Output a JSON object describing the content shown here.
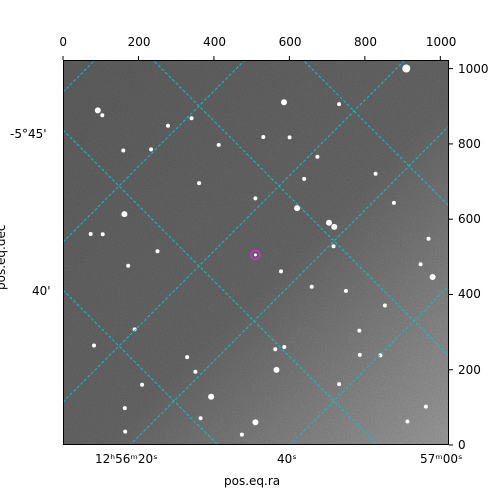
{
  "figure": {
    "x_axis_label": "pos.eq.ra",
    "y_axis_label": "pos.eq.dec",
    "background_color": "#ffffff",
    "image_colormap": "gray",
    "grid_color": "#00c8c8",
    "marker_color": "#cc33cc"
  },
  "pixel_axes": {
    "top_ticks": [
      "0",
      "200",
      "400",
      "600",
      "800",
      "1000"
    ],
    "top_tick_values": [
      0,
      200,
      400,
      600,
      800,
      1000
    ],
    "right_ticks": [
      "0",
      "200",
      "400",
      "600",
      "800",
      "1000"
    ],
    "right_tick_values": [
      0,
      200,
      400,
      600,
      800,
      1000
    ],
    "range": [
      0,
      1023
    ]
  },
  "world_axes": {
    "ra_ticks": [
      "12ʰ56ᵐ20ˢ",
      "40ˢ",
      "57ᵐ00ˢ"
    ],
    "dec_ticks": [
      "-5°45'",
      "40'"
    ]
  },
  "chart_data": {
    "type": "scatter",
    "title": "",
    "xlabel": "pos.eq.ra",
    "ylabel": "pos.eq.dec",
    "xlim": [
      0,
      1023
    ],
    "ylim": [
      0,
      1023
    ],
    "grid": true,
    "series": [
      {
        "x": [
          510
        ],
        "y": [
          505
        ]
      }
    ]
  },
  "stars": [
    [
      912,
      1003,
      4
    ],
    [
      733,
      908,
      2
    ],
    [
      90,
      891,
      3
    ],
    [
      586,
      913,
      3
    ],
    [
      102,
      878,
      2
    ],
    [
      340,
      870,
      2
    ],
    [
      277,
      850,
      2
    ],
    [
      531,
      820,
      2
    ],
    [
      601,
      819,
      2
    ],
    [
      412,
      799,
      2
    ],
    [
      158,
      784,
      2
    ],
    [
      232,
      787,
      2
    ],
    [
      675,
      767,
      2
    ],
    [
      830,
      722,
      2
    ],
    [
      640,
      708,
      2
    ],
    [
      360,
      697,
      2
    ],
    [
      510,
      656,
      2
    ],
    [
      621,
      630,
      3
    ],
    [
      161,
      614,
      3
    ],
    [
      879,
      644,
      2
    ],
    [
      706,
      591,
      3
    ],
    [
      720,
      580,
      3
    ],
    [
      71,
      561,
      2
    ],
    [
      103,
      560,
      2
    ],
    [
      971,
      548,
      2
    ],
    [
      249,
      515,
      2
    ],
    [
      718,
      528,
      2
    ],
    [
      950,
      480,
      2
    ],
    [
      578,
      461,
      2
    ],
    [
      171,
      476,
      2
    ],
    [
      982,
      446,
      3
    ],
    [
      751,
      409,
      2
    ],
    [
      855,
      370,
      2
    ],
    [
      188,
      306,
      2
    ],
    [
      787,
      303,
      2
    ],
    [
      587,
      259,
      2
    ],
    [
      563,
      253,
      2
    ],
    [
      328,
      232,
      2
    ],
    [
      80,
      263,
      2
    ],
    [
      788,
      238,
      2
    ],
    [
      843,
      237,
      2
    ],
    [
      566,
      198,
      3
    ],
    [
      350,
      193,
      2
    ],
    [
      733,
      160,
      2
    ],
    [
      208,
      158,
      2
    ],
    [
      392,
      126,
      3
    ],
    [
      162,
      96,
      2
    ],
    [
      364,
      69,
      2
    ],
    [
      510,
      58,
      3
    ],
    [
      474,
      25,
      2
    ],
    [
      163,
      33,
      2
    ],
    [
      915,
      60,
      2
    ],
    [
      964,
      100,
      2
    ],
    [
      660,
      420,
      2
    ]
  ]
}
